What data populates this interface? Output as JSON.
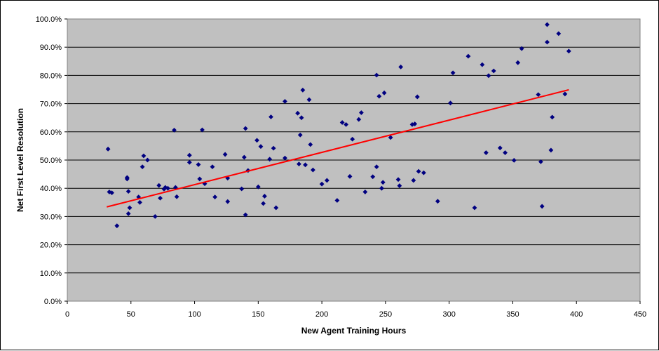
{
  "chart_data": {
    "type": "scatter",
    "title": "",
    "xlabel": "New Agent Training Hours",
    "ylabel": "Net First Level Resolution",
    "xlim": [
      0,
      450
    ],
    "ylim": [
      0,
      100
    ],
    "x_ticks": [
      0,
      50,
      100,
      150,
      200,
      250,
      300,
      350,
      400,
      450
    ],
    "y_ticks": [
      0,
      10,
      20,
      30,
      40,
      50,
      60,
      70,
      80,
      90,
      100
    ],
    "x_tick_labels": [
      "0",
      "50",
      "100",
      "150",
      "200",
      "250",
      "300",
      "350",
      "400",
      "450"
    ],
    "y_tick_labels": [
      "0.0%",
      "10.0%",
      "20.0%",
      "30.0%",
      "40.0%",
      "50.0%",
      "60.0%",
      "70.0%",
      "80.0%",
      "90.0%",
      "100.0%"
    ],
    "grid": "horizontal",
    "colors": {
      "plot_bg": "#c0c0c0",
      "points": "#000080",
      "trendline": "#ff0000",
      "gridline": "#000000"
    },
    "series": [
      {
        "marker": "diamond",
        "points": [
          [
            32,
            53.9
          ],
          [
            33,
            38.7
          ],
          [
            35,
            38.4
          ],
          [
            39,
            26.7
          ],
          [
            47,
            43.8
          ],
          [
            47,
            43.3
          ],
          [
            48,
            38.9
          ],
          [
            48,
            31.0
          ],
          [
            49,
            33.1
          ],
          [
            56,
            36.9
          ],
          [
            57,
            35.0
          ],
          [
            59,
            47.6
          ],
          [
            60,
            51.5
          ],
          [
            63,
            50.0
          ],
          [
            69,
            30.0
          ],
          [
            72,
            41.0
          ],
          [
            73,
            36.5
          ],
          [
            76,
            39.7
          ],
          [
            77,
            40.3
          ],
          [
            79,
            40.0
          ],
          [
            84,
            60.6
          ],
          [
            85,
            40.3
          ],
          [
            86,
            37.0
          ],
          [
            96,
            51.7
          ],
          [
            96,
            49.2
          ],
          [
            103,
            48.4
          ],
          [
            104,
            43.3
          ],
          [
            106,
            60.7
          ],
          [
            108,
            41.6
          ],
          [
            114,
            47.6
          ],
          [
            116,
            36.9
          ],
          [
            124,
            52.0
          ],
          [
            126,
            43.6
          ],
          [
            126,
            35.3
          ],
          [
            137,
            39.8
          ],
          [
            139,
            51.0
          ],
          [
            140,
            61.2
          ],
          [
            140,
            30.6
          ],
          [
            142,
            46.3
          ],
          [
            149,
            57.0
          ],
          [
            150,
            40.5
          ],
          [
            152,
            54.8
          ],
          [
            154,
            34.6
          ],
          [
            155,
            37.2
          ],
          [
            159,
            50.3
          ],
          [
            160,
            65.3
          ],
          [
            162,
            54.2
          ],
          [
            164,
            33.1
          ],
          [
            171,
            70.8
          ],
          [
            171,
            50.7
          ],
          [
            181,
            66.6
          ],
          [
            182,
            48.6
          ],
          [
            183,
            58.9
          ],
          [
            184,
            65.0
          ],
          [
            185,
            74.8
          ],
          [
            187,
            48.3
          ],
          [
            190,
            71.4
          ],
          [
            191,
            55.5
          ],
          [
            193,
            46.5
          ],
          [
            200,
            41.5
          ],
          [
            204,
            42.8
          ],
          [
            212,
            35.7
          ],
          [
            216,
            63.3
          ],
          [
            219,
            62.6
          ],
          [
            222,
            44.2
          ],
          [
            224,
            57.4
          ],
          [
            229,
            64.4
          ],
          [
            231,
            66.8
          ],
          [
            234,
            38.7
          ],
          [
            240,
            44.1
          ],
          [
            243,
            80.1
          ],
          [
            243,
            47.6
          ],
          [
            245,
            72.6
          ],
          [
            247,
            40.0
          ],
          [
            248,
            42.1
          ],
          [
            249,
            73.8
          ],
          [
            254,
            58.0
          ],
          [
            260,
            43.1
          ],
          [
            261,
            40.9
          ],
          [
            262,
            83.0
          ],
          [
            271,
            62.6
          ],
          [
            272,
            42.8
          ],
          [
            273,
            62.8
          ],
          [
            275,
            72.4
          ],
          [
            276,
            46.0
          ],
          [
            280,
            45.5
          ],
          [
            291,
            35.4
          ],
          [
            301,
            70.2
          ],
          [
            303,
            80.9
          ],
          [
            315,
            86.8
          ],
          [
            320,
            33.1
          ],
          [
            326,
            83.8
          ],
          [
            329,
            52.6
          ],
          [
            331,
            79.9
          ],
          [
            335,
            81.6
          ],
          [
            340,
            54.3
          ],
          [
            344,
            52.6
          ],
          [
            351,
            49.9
          ],
          [
            354,
            84.5
          ],
          [
            357,
            89.5
          ],
          [
            370,
            73.2
          ],
          [
            372,
            49.4
          ],
          [
            373,
            33.6
          ],
          [
            377,
            98.0
          ],
          [
            377,
            91.8
          ],
          [
            380,
            53.5
          ],
          [
            381,
            65.2
          ],
          [
            386,
            94.8
          ],
          [
            391,
            73.4
          ],
          [
            394,
            88.6
          ]
        ]
      }
    ],
    "trendline": {
      "x": [
        31,
        394
      ],
      "y": [
        33.4,
        74.9
      ]
    }
  }
}
